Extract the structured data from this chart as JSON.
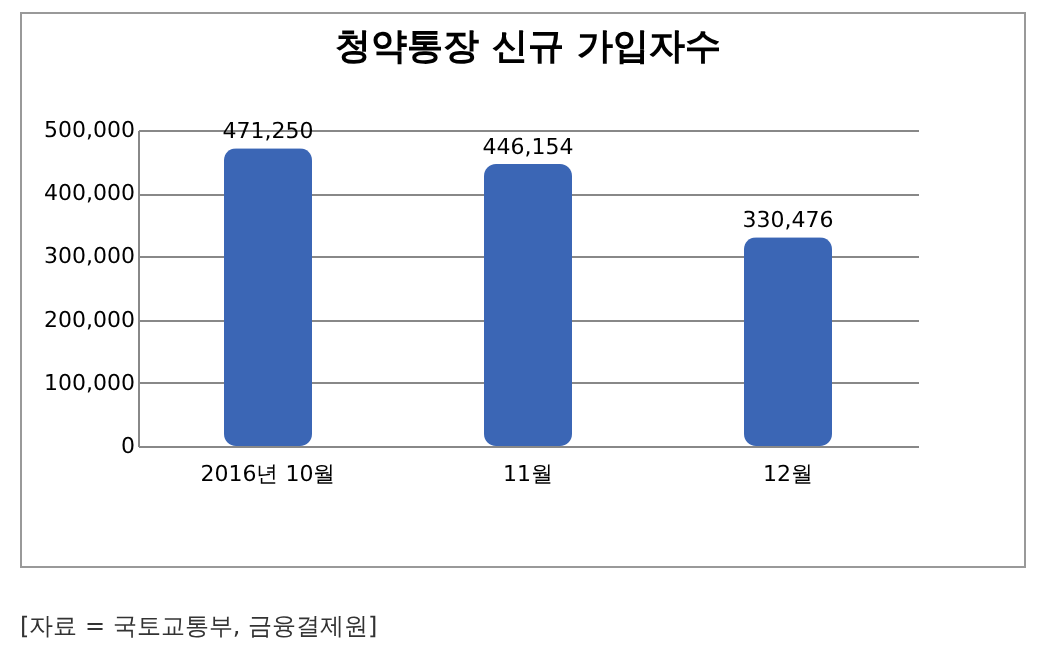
{
  "chart_data": {
    "type": "bar",
    "title": "청약통장 신규 가입자수",
    "categories": [
      "2016년 10월",
      "11월",
      "12월"
    ],
    "values": [
      471250,
      446154,
      330476
    ],
    "value_labels": [
      "471,250",
      "446,154",
      "330,476"
    ],
    "color": "#3b66b5",
    "ylim": [
      0,
      500000
    ],
    "yticks": [
      0,
      {
        "value": 100000,
        "label": "100,000"
      },
      {
        "value": 200000,
        "label": "200,000"
      },
      {
        "value": 300000,
        "label": "300,000"
      },
      {
        "value": 400000,
        "label": "400,000"
      },
      {
        "value": 500000,
        "label": "500,000"
      }
    ],
    "grid": "y",
    "annotations": [
      "[자료 = 국토교통부, 금융결제원]"
    ]
  }
}
